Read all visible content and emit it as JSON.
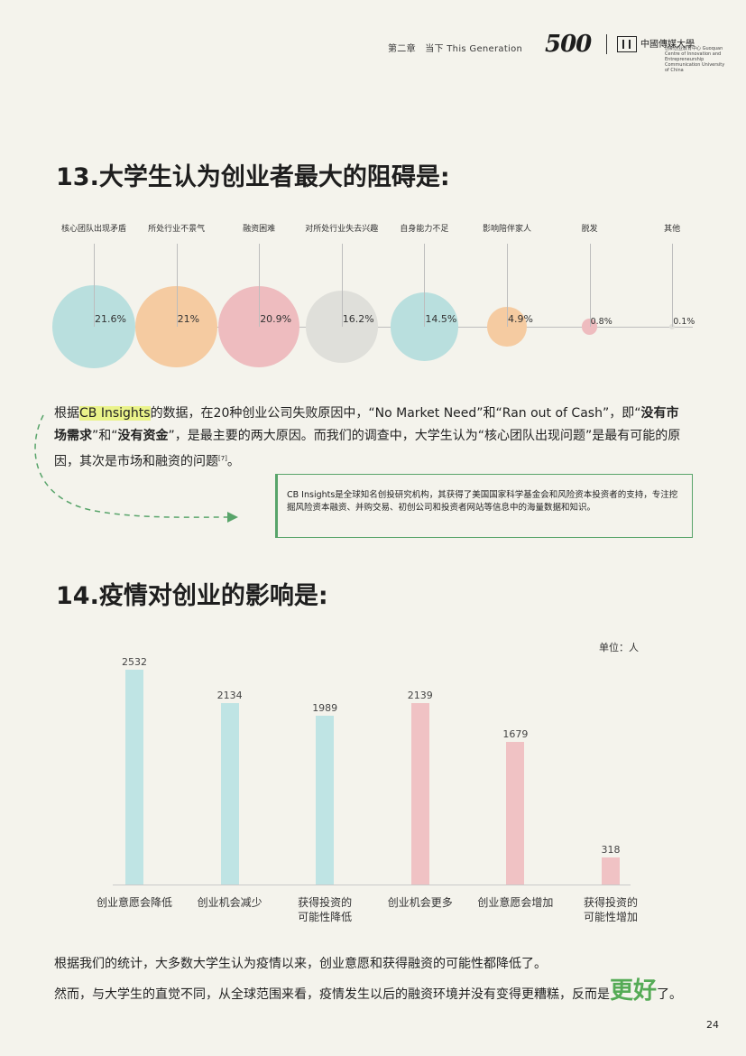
{
  "header": {
    "chapter": "第二章　当下 This Generation",
    "logo_500": "500",
    "logo_cn": "中國傳媒大學",
    "logo_sub": "创新创业教育中心 Guoquan Centre of Innovation and Entrepreneurship Communication University of China"
  },
  "q13": {
    "title": "13.大学生认为创业者最大的阻碍是:",
    "items": [
      {
        "label": "核心团队出现矛盾",
        "value": 21.6,
        "display": "21.6%",
        "color": "#b9dfde"
      },
      {
        "label": "所处行业不景气",
        "value": 21,
        "display": "21%",
        "color": "#f5cba1"
      },
      {
        "label": "融资困难",
        "value": 20.9,
        "display": "20.9%",
        "color": "#eebcbf"
      },
      {
        "label": "对所处行业失去兴趣",
        "value": 16.2,
        "display": "16.2%",
        "color": "#dfdfda"
      },
      {
        "label": "自身能力不足",
        "value": 14.5,
        "display": "14.5%",
        "color": "#b9dfde"
      },
      {
        "label": "影响陪伴家人",
        "value": 4.9,
        "display": "4.9%",
        "color": "#f5cba1"
      },
      {
        "label": "脱发",
        "value": 0.8,
        "display": "0.8%",
        "color": "#eebcbf"
      },
      {
        "label": "其他",
        "value": 0.1,
        "display": "0.1%",
        "color": "#dfdfda"
      }
    ]
  },
  "para1": {
    "t1": "根据",
    "t2": "CB Insights",
    "t3": "的数据，在20种创业公司失败原因中，“No Market Need”和“Ran out of Cash”，即“",
    "t4": "没有市场需求",
    "t5": "”和“",
    "t6": "没有资金",
    "t7": "”，是最主要的两大原因。而我们的调查中，大学生认为“核心团队出现问题”是最有可能的原因，其次是市场和融资的问题",
    "t8": "[7]",
    "t9": "。"
  },
  "note": "CB Insights是全球知名创投研究机构，其获得了美国国家科学基金会和风险资本投资者的支持，专注挖掘风险资本融资、并购交易、初创公司和投资者网站等信息中的海量数据和知识。",
  "q14": {
    "title": "14.疫情对创业的影响是:",
    "unit": "单位：人"
  },
  "chart_data": {
    "type": "bar",
    "categories": [
      "创业意愿会降低",
      "创业机会减少",
      "获得投资的\n可能性降低",
      "创业机会更多",
      "创业意愿会增加",
      "获得投资的\n可能性增加"
    ],
    "values": [
      2532,
      2134,
      1989,
      2139,
      1679,
      318
    ],
    "colors": [
      "#bfe4e4",
      "#bfe4e4",
      "#bfe4e4",
      "#f0c2c4",
      "#f0c2c4",
      "#f0c2c4"
    ],
    "ylim": [
      0,
      2532
    ],
    "unit": "单位：人",
    "grid": false
  },
  "para2": "根据我们的统计，大多数大学生认为疫情以来，创业意愿和获得融资的可能性都降低了。",
  "para3": {
    "t1": "然而，与大学生的直觉不同，从全球范围来看，疫情发生以后的融资环境并没有变得更糟糕，反而是",
    "t2": "更好",
    "t3": "了。"
  },
  "page_number": "24"
}
